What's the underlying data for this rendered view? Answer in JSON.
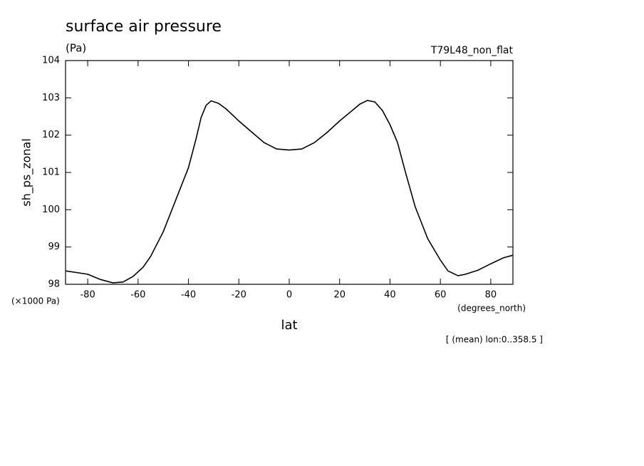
{
  "chart_data": {
    "type": "line",
    "title": "surface air pressure",
    "units": "(Pa)",
    "dataset": "T79L48_non_flat",
    "y_label": "sh_ps_zonal",
    "y_unit_note": "(×1000 Pa)",
    "x_unit_note": "(degrees_north)",
    "x_label": "lat",
    "annotation": "[ (mean) lon:0..358.5 ]",
    "x": [
      -88.8,
      -80,
      -75,
      -70,
      -66,
      -62,
      -58,
      -55,
      -50,
      -45,
      -40,
      -37,
      -35,
      -33,
      -31,
      -28,
      -25,
      -20,
      -15,
      -10,
      -5,
      0,
      5,
      10,
      15,
      20,
      25,
      28,
      31,
      34,
      37,
      40,
      43,
      46,
      50,
      55,
      60,
      63,
      67,
      70,
      75,
      80,
      85,
      88.8
    ],
    "series": [
      {
        "name": "sh_ps_zonal",
        "color": "#000000",
        "values": [
          98.36,
          98.27,
          98.13,
          98.04,
          98.06,
          98.21,
          98.46,
          98.75,
          99.41,
          100.27,
          101.13,
          101.9,
          102.47,
          102.8,
          102.92,
          102.85,
          102.7,
          102.38,
          102.09,
          101.8,
          101.63,
          101.6,
          101.63,
          101.8,
          102.07,
          102.38,
          102.66,
          102.83,
          102.93,
          102.89,
          102.66,
          102.28,
          101.8,
          101.04,
          100.08,
          99.22,
          98.65,
          98.36,
          98.23,
          98.27,
          98.38,
          98.55,
          98.71,
          98.78
        ]
      }
    ],
    "xlim": [
      -88.8,
      88.8
    ],
    "xticks": [
      -80,
      -60,
      -40,
      -20,
      0,
      20,
      40,
      60,
      80
    ],
    "ylim": [
      98,
      104
    ],
    "yticks": [
      98,
      99,
      100,
      101,
      102,
      103,
      104
    ]
  }
}
